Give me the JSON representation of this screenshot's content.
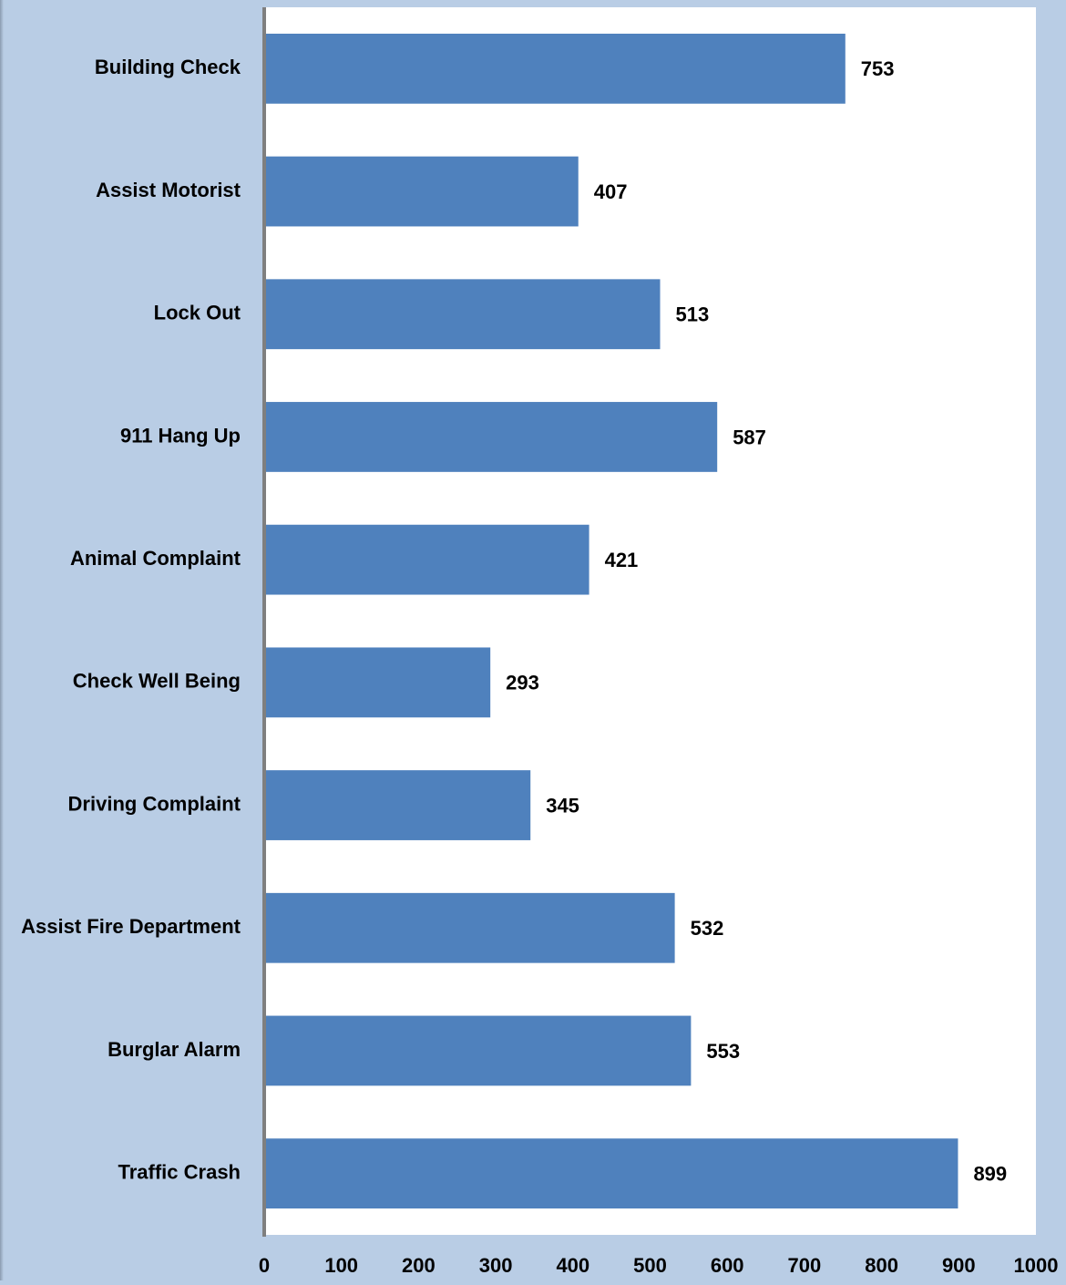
{
  "chart_data": {
    "type": "bar",
    "orientation": "horizontal",
    "title": "",
    "xlabel": "",
    "ylabel": "",
    "categories": [
      "Building Check",
      "Assist Motorist",
      "Lock Out",
      "911 Hang Up",
      "Animal Complaint",
      "Check Well Being",
      "Driving Complaint",
      "Assist Fire Department",
      "Burglar Alarm",
      "Traffic Crash"
    ],
    "values": [
      753,
      407,
      513,
      587,
      421,
      293,
      345,
      532,
      553,
      899
    ],
    "xlim": [
      0,
      1000
    ],
    "ticks": [
      0,
      100,
      200,
      300,
      400,
      500,
      600,
      700,
      800,
      900,
      1000
    ],
    "grid": false,
    "legend": "none",
    "data_labels": true,
    "colors": {
      "bar": "#4f81bd",
      "plot_area": "#ffffff",
      "page_background": "#b9cde5",
      "axis_line": "#7f7f7f"
    }
  }
}
